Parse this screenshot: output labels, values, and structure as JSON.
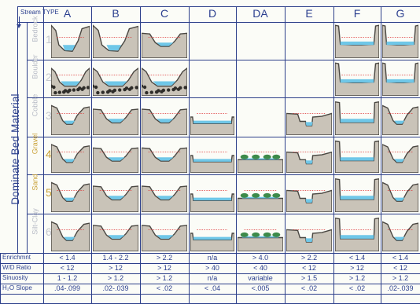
{
  "header": {
    "stream_type_label": "Stream TYPE",
    "columns": [
      "A",
      "B",
      "C",
      "D",
      "DA",
      "E",
      "F",
      "G"
    ]
  },
  "axis_title": "Dominate Bed Material",
  "rows": [
    {
      "number": "1",
      "material": "Bedrock",
      "style": "fade"
    },
    {
      "number": "2",
      "material": "Boulder",
      "style": "fade"
    },
    {
      "number": "3",
      "material": "Cobble",
      "style": "fade"
    },
    {
      "number": "4",
      "material": "Gravel",
      "style": "gold"
    },
    {
      "number": "5",
      "material": "Sand",
      "style": "gold"
    },
    {
      "number": "6",
      "material": "Silt-Clay",
      "style": "fade"
    }
  ],
  "cells": [
    [
      "cliff",
      "cliff",
      "bowl",
      "none",
      "none",
      "none",
      "gorge",
      "gorge"
    ],
    [
      "rocky",
      "rocky",
      "rocky",
      "none",
      "none",
      "none",
      "gorge",
      "gorge"
    ],
    [
      "v",
      "bowl",
      "bowl",
      "flat",
      "none",
      "step",
      "box",
      "v"
    ],
    [
      "v",
      "bowl",
      "bowl",
      "flat",
      "veg",
      "step",
      "box",
      "v"
    ],
    [
      "v",
      "bowl",
      "bowl",
      "flat",
      "veg",
      "step",
      "box",
      "v"
    ],
    [
      "v",
      "bowl",
      "bowl",
      "flat",
      "veg",
      "step",
      "box",
      "v"
    ]
  ],
  "criteria": [
    {
      "label": "Enrichmnt",
      "values": [
        "< 1.4",
        "1.4 - 2.2",
        "> 2.2",
        "n/a",
        "> 4.0",
        "> 2.2",
        "< 1.4",
        "< 1.4"
      ]
    },
    {
      "label": "W/D Ratio",
      "values": [
        "< 12",
        "> 12",
        "> 12",
        "> 40",
        "< 40",
        "< 12",
        "> 12",
        "< 12"
      ]
    },
    {
      "label": "Sinuosity",
      "values": [
        "1 - 1.2",
        "> 1.2",
        "> 1.2",
        "n/a",
        "variable",
        "> 1.5",
        "> 1.2",
        "> 1.2"
      ]
    },
    {
      "label": "H₂O Slope",
      "values": [
        ".04-.099",
        ".02-.039",
        "< .02",
        "< .04",
        "<.005",
        "< .02",
        "< .02",
        ".02-.039"
      ]
    }
  ],
  "colors": {
    "grid": "#2c3f8a",
    "ground": "#c9c3b8",
    "ground_dark": "#4a4742",
    "water": "#6fc7e8",
    "vegetation": "#3d8a4a",
    "accent_gold": "#c9a137"
  }
}
